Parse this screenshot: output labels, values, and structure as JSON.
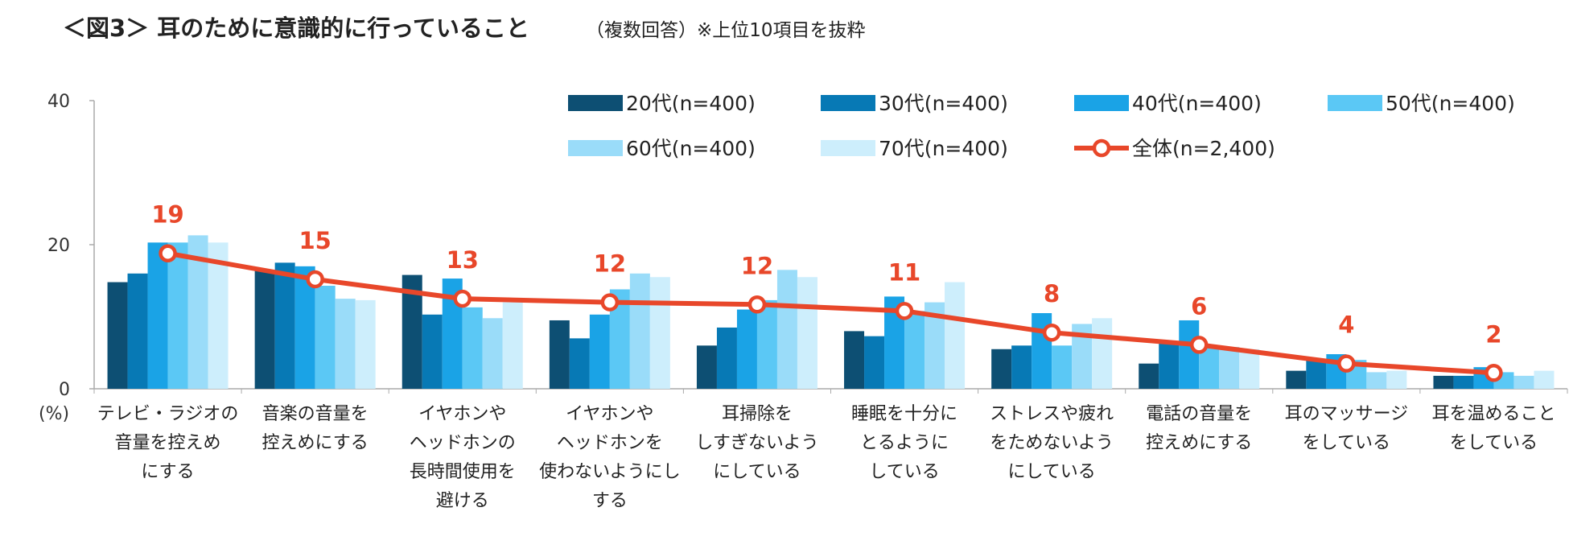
{
  "title": {
    "main": "＜図3＞ 耳のために意識的に行っていること",
    "sub": "（複数回答）※上位10項目を抜粋"
  },
  "colors": {
    "series": [
      "#0d4f73",
      "#0779b5",
      "#1aa3e6",
      "#5bc8f5",
      "#9adcf9",
      "#cdeefc"
    ],
    "line": "#e8472a",
    "axis": "#aaaaaa"
  },
  "chart_data": {
    "type": "bar+line",
    "title": "＜図3＞ 耳のために意識的に行っていること（複数回答）※上位10項目を抜粋",
    "ylabel": "(%)",
    "ylim": [
      0,
      40
    ],
    "yticks": [
      "0",
      "20",
      "40"
    ],
    "categories": [
      [
        "テレビ・ラジオの",
        "音量を控えめ",
        "にする"
      ],
      [
        "音楽の音量を",
        "控えめにする"
      ],
      [
        "イヤホンや",
        "ヘッドホンの",
        "長時間使用を",
        "避ける"
      ],
      [
        "イヤホンや",
        "ヘッドホンを",
        "使わないようにし",
        "する"
      ],
      [
        "耳掃除を",
        "しすぎないよう",
        "にしている"
      ],
      [
        "睡眠を十分に",
        "とるように",
        "している"
      ],
      [
        "ストレスや疲れ",
        "をためないよう",
        "にしている"
      ],
      [
        "電話の音量を",
        "控えめにする"
      ],
      [
        "耳のマッサージ",
        "をしている"
      ],
      [
        "耳を温めること",
        "をしている"
      ]
    ],
    "series": [
      {
        "name": "20代(n=400)",
        "values": [
          14.8,
          16.5,
          15.8,
          9.5,
          6.0,
          8.0,
          5.5,
          3.5,
          2.5,
          1.8
        ]
      },
      {
        "name": "30代(n=400)",
        "values": [
          16.0,
          17.5,
          10.3,
          7.0,
          8.5,
          7.3,
          6.0,
          6.5,
          4.0,
          1.8
        ]
      },
      {
        "name": "40代(n=400)",
        "values": [
          20.3,
          17.0,
          15.3,
          10.3,
          11.0,
          12.8,
          10.5,
          9.5,
          4.8,
          3.0
        ]
      },
      {
        "name": "50代(n=400)",
        "values": [
          20.3,
          14.3,
          11.3,
          13.8,
          12.3,
          10.8,
          6.0,
          6.0,
          4.0,
          2.3
        ]
      },
      {
        "name": "60代(n=400)",
        "values": [
          21.3,
          12.5,
          9.8,
          16.0,
          16.5,
          12.0,
          9.0,
          5.8,
          2.3,
          1.8
        ]
      },
      {
        "name": "70代(n=400)",
        "values": [
          20.3,
          12.3,
          12.0,
          15.5,
          15.5,
          14.8,
          9.8,
          5.5,
          2.5,
          2.5
        ]
      }
    ],
    "line": {
      "name": "全体(n=2,400)",
      "values": [
        18.8,
        15.2,
        12.5,
        12.0,
        11.7,
        10.8,
        7.8,
        6.1,
        3.5,
        2.2
      ]
    },
    "data_labels": [
      "19",
      "15",
      "13",
      "12",
      "12",
      "11",
      "8",
      "6",
      "4",
      "2"
    ]
  }
}
